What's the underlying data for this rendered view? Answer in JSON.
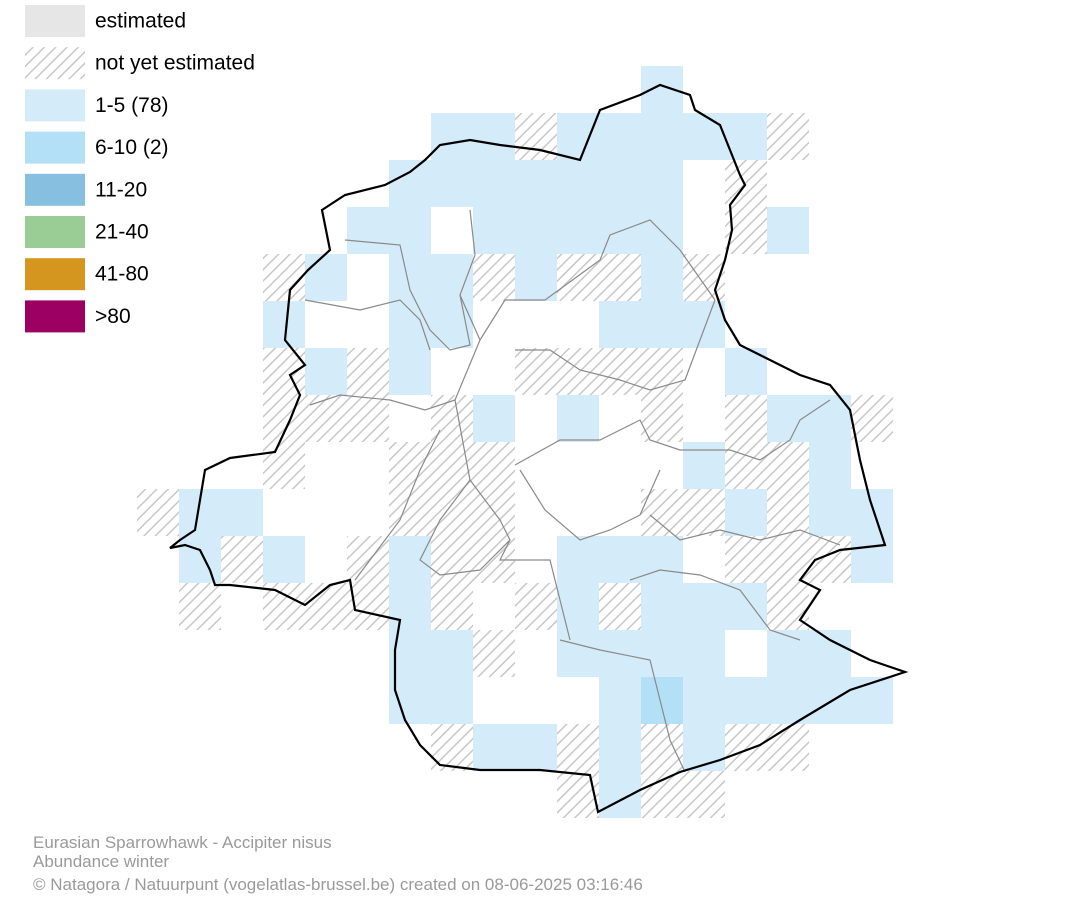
{
  "legend": [
    {
      "label": "estimated",
      "color": "#e6e6e6"
    },
    {
      "label": "not yet estimated",
      "color": "hatch"
    },
    {
      "label": "1-5 (78)",
      "color": "#d4ebf9"
    },
    {
      "label": "6-10 (2)",
      "color": "#b3e0f7"
    },
    {
      "label": "11-20",
      "color": "#87bfe0"
    },
    {
      "label": "21-40",
      "color": "#9acc96"
    },
    {
      "label": "41-80",
      "color": "#d4961e"
    },
    {
      "label": ">80",
      "color": "#9b0062"
    }
  ],
  "footer": {
    "species": "Eurasian Sparrowhawk - Accipiter nisus",
    "subtitle": "Abundance winter",
    "credit": "© Natagora / Natuurpunt (vogelatlas-brussel.be) created on 08-06-2025 03:16:46"
  }
}
